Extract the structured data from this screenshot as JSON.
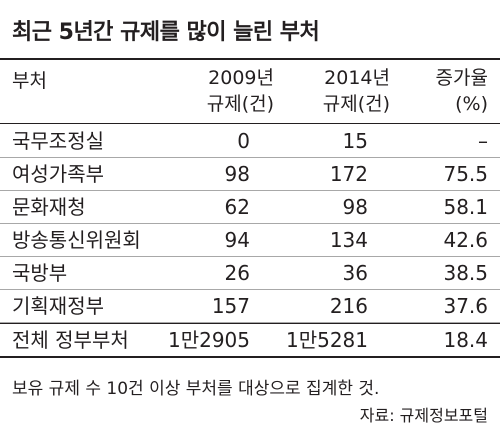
{
  "title": "최근 5년간 규제를 많이 늘린 부처",
  "table": {
    "headers": {
      "dept": "부처",
      "y2009_line1": "2009년",
      "y2009_line2": "규제(건)",
      "y2014_line1": "2014년",
      "y2014_line2": "규제(건)",
      "rate_line1": "증가율",
      "rate_line2": "(%)"
    },
    "rows": [
      {
        "dept": "국무조정실",
        "y2009": "0",
        "y2014": "15",
        "rate": "–"
      },
      {
        "dept": "여성가족부",
        "y2009": "98",
        "y2014": "172",
        "rate": "75.5"
      },
      {
        "dept": "문화재청",
        "y2009": "62",
        "y2014": "98",
        "rate": "58.1"
      },
      {
        "dept": "방송통신위원회",
        "y2009": "94",
        "y2014": "134",
        "rate": "42.6"
      },
      {
        "dept": "국방부",
        "y2009": "26",
        "y2014": "36",
        "rate": "38.5"
      },
      {
        "dept": "기획재정부",
        "y2009": "157",
        "y2014": "216",
        "rate": "37.6"
      }
    ],
    "total": {
      "dept": "전체 정부부처",
      "y2009": "1만2905",
      "y2014": "1만5281",
      "rate": "18.4"
    }
  },
  "note": "보유 규제 수 10건 이상 부처를 대상으로 집계한 것.",
  "source": "자료: 규제정보포털"
}
